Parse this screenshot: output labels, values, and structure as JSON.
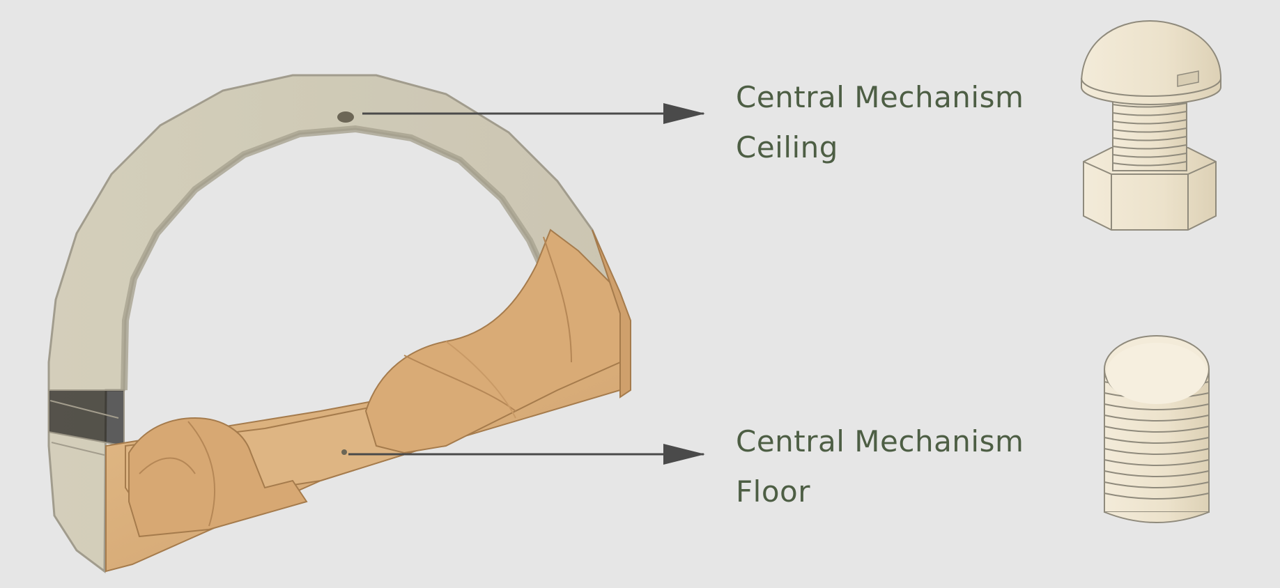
{
  "diagram": {
    "colors": {
      "background": "#e6e6e6",
      "label_text": "#4d5e44",
      "arrow": "#4a4a4a",
      "wood": "#d9ae7a",
      "wood_dark": "#b98c5a",
      "translucent_shell": "#cfc7ad",
      "part_ivory": "#efe6d2",
      "part_outline": "#8f8a7c"
    },
    "labels": [
      {
        "id": "ceiling",
        "lines": [
          "Central Mechanism",
          "Ceiling"
        ],
        "part_icon": "bolt-icon"
      },
      {
        "id": "floor",
        "lines": [
          "Central Mechanism",
          "Floor"
        ],
        "part_icon": "threaded-cylinder-icon"
      }
    ],
    "main_object_icon": "arch-housing-icon"
  }
}
